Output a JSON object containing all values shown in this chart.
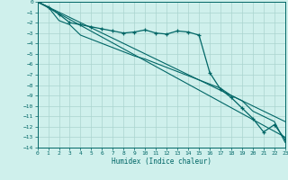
{
  "xlabel": "Humidex (Indice chaleur)",
  "bg_color": "#cff0ec",
  "grid_color": "#aad4cf",
  "line_color": "#006666",
  "xlim": [
    0,
    23
  ],
  "ylim": [
    -14,
    0
  ],
  "xticks": [
    0,
    1,
    2,
    3,
    4,
    5,
    6,
    7,
    8,
    9,
    10,
    11,
    12,
    13,
    14,
    15,
    16,
    17,
    18,
    19,
    20,
    21,
    22,
    23
  ],
  "yticks": [
    0,
    -1,
    -2,
    -3,
    -4,
    -5,
    -6,
    -7,
    -8,
    -9,
    -10,
    -11,
    -12,
    -13,
    -14
  ],
  "main_x": [
    0,
    1,
    2,
    3,
    4,
    5,
    6,
    7,
    8,
    9,
    10,
    11,
    12,
    13,
    14,
    15,
    16,
    17,
    18,
    19,
    20,
    21,
    22,
    23
  ],
  "main_y": [
    0,
    -0.5,
    -1.2,
    -2.0,
    -2.2,
    -2.4,
    -2.6,
    -2.8,
    -3.0,
    -2.9,
    -2.7,
    -3.0,
    -3.1,
    -2.8,
    -2.9,
    -3.2,
    -6.8,
    -8.4,
    -9.2,
    -10.2,
    -11.2,
    -12.5,
    -11.8,
    -13.2
  ],
  "line2_x": [
    0,
    1,
    2,
    3,
    4,
    5,
    6,
    7,
    8,
    9,
    10,
    11,
    12,
    13,
    14,
    15,
    16,
    17,
    18,
    19,
    20,
    21,
    22,
    23
  ],
  "line2_y": [
    0,
    -0.5,
    -1.8,
    -2.2,
    -3.2,
    -3.6,
    -4.0,
    -4.4,
    -4.8,
    -5.2,
    -5.5,
    -5.9,
    -6.3,
    -6.7,
    -7.1,
    -7.5,
    -7.9,
    -8.3,
    -9.0,
    -9.5,
    -10.5,
    -11.0,
    -11.5,
    -13.5
  ],
  "line3_x": [
    0,
    23
  ],
  "line3_y": [
    0,
    -13.0
  ],
  "line4_x": [
    0,
    23
  ],
  "line4_y": [
    0,
    -11.5
  ]
}
